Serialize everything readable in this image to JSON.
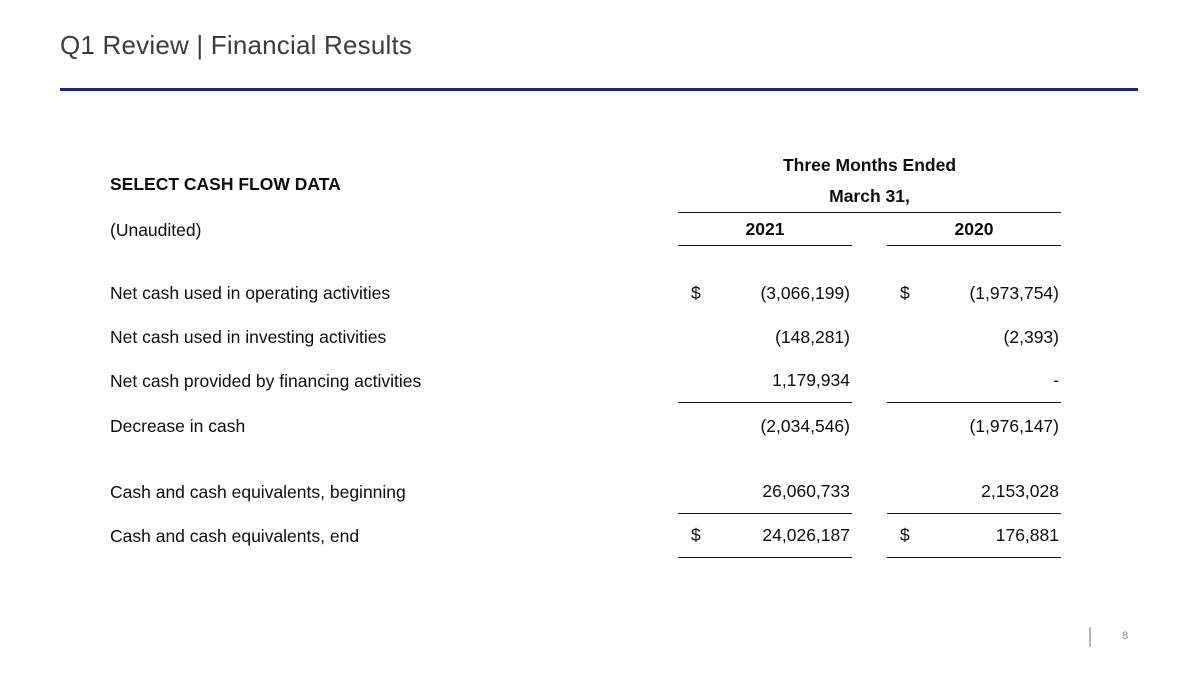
{
  "slide": {
    "title": "Q1 Review | Financial Results",
    "page_number": "8"
  },
  "table": {
    "heading": "SELECT CASH FLOW DATA",
    "subheading": "(Unaudited)",
    "period_header_line1": "Three Months Ended",
    "period_header_line2": "March 31,",
    "columns": [
      "2021",
      "2020"
    ],
    "rows": [
      {
        "label": "Net cash used in operating activities",
        "dollar_2021": "$",
        "value_2021": "(3,066,199)",
        "dollar_2020": "$",
        "value_2020": "(1,973,754)"
      },
      {
        "label": "Net cash used in investing activities",
        "value_2021": "(148,281)",
        "value_2020": "(2,393)"
      },
      {
        "label": "Net cash provided by financing activities",
        "value_2021": "1,179,934",
        "value_2020": "-"
      },
      {
        "label": "Decrease in cash",
        "value_2021": "(2,034,546)",
        "value_2020": "(1,976,147)"
      },
      {
        "label": "Cash and cash equivalents, beginning",
        "value_2021": "26,060,733",
        "value_2020": "2,153,028"
      },
      {
        "label": "Cash and cash equivalents, end",
        "dollar_2021": "$",
        "value_2021": "24,026,187",
        "dollar_2020": "$",
        "value_2020": "176,881"
      }
    ]
  },
  "colors": {
    "accent_rule": "#1e2a6d",
    "title_text": "#3d3d3d",
    "body_text": "#0d0d0d",
    "muted_gray": "#8c8c8c"
  }
}
